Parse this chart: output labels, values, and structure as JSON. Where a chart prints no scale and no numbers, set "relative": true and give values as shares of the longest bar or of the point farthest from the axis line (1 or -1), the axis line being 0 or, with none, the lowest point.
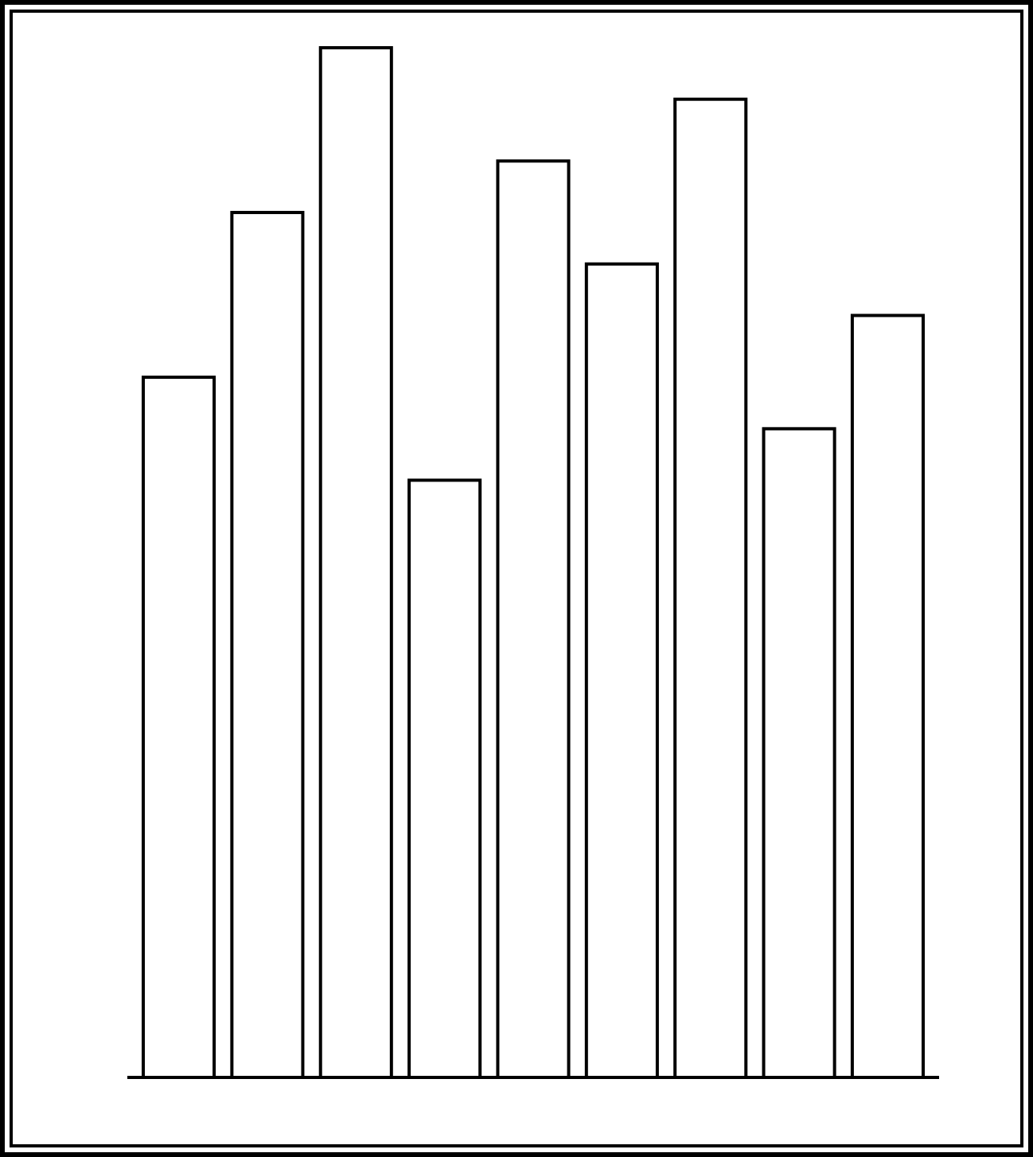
{
  "chart_data": {
    "type": "bar",
    "relative": true,
    "categories": [
      null,
      null,
      null,
      null,
      null,
      null,
      null,
      null,
      null
    ],
    "values": [
      0.68,
      0.84,
      1,
      0.58,
      0.89,
      0.79,
      0.95,
      0.63,
      0.74
    ],
    "color": "#ffffff"
  }
}
